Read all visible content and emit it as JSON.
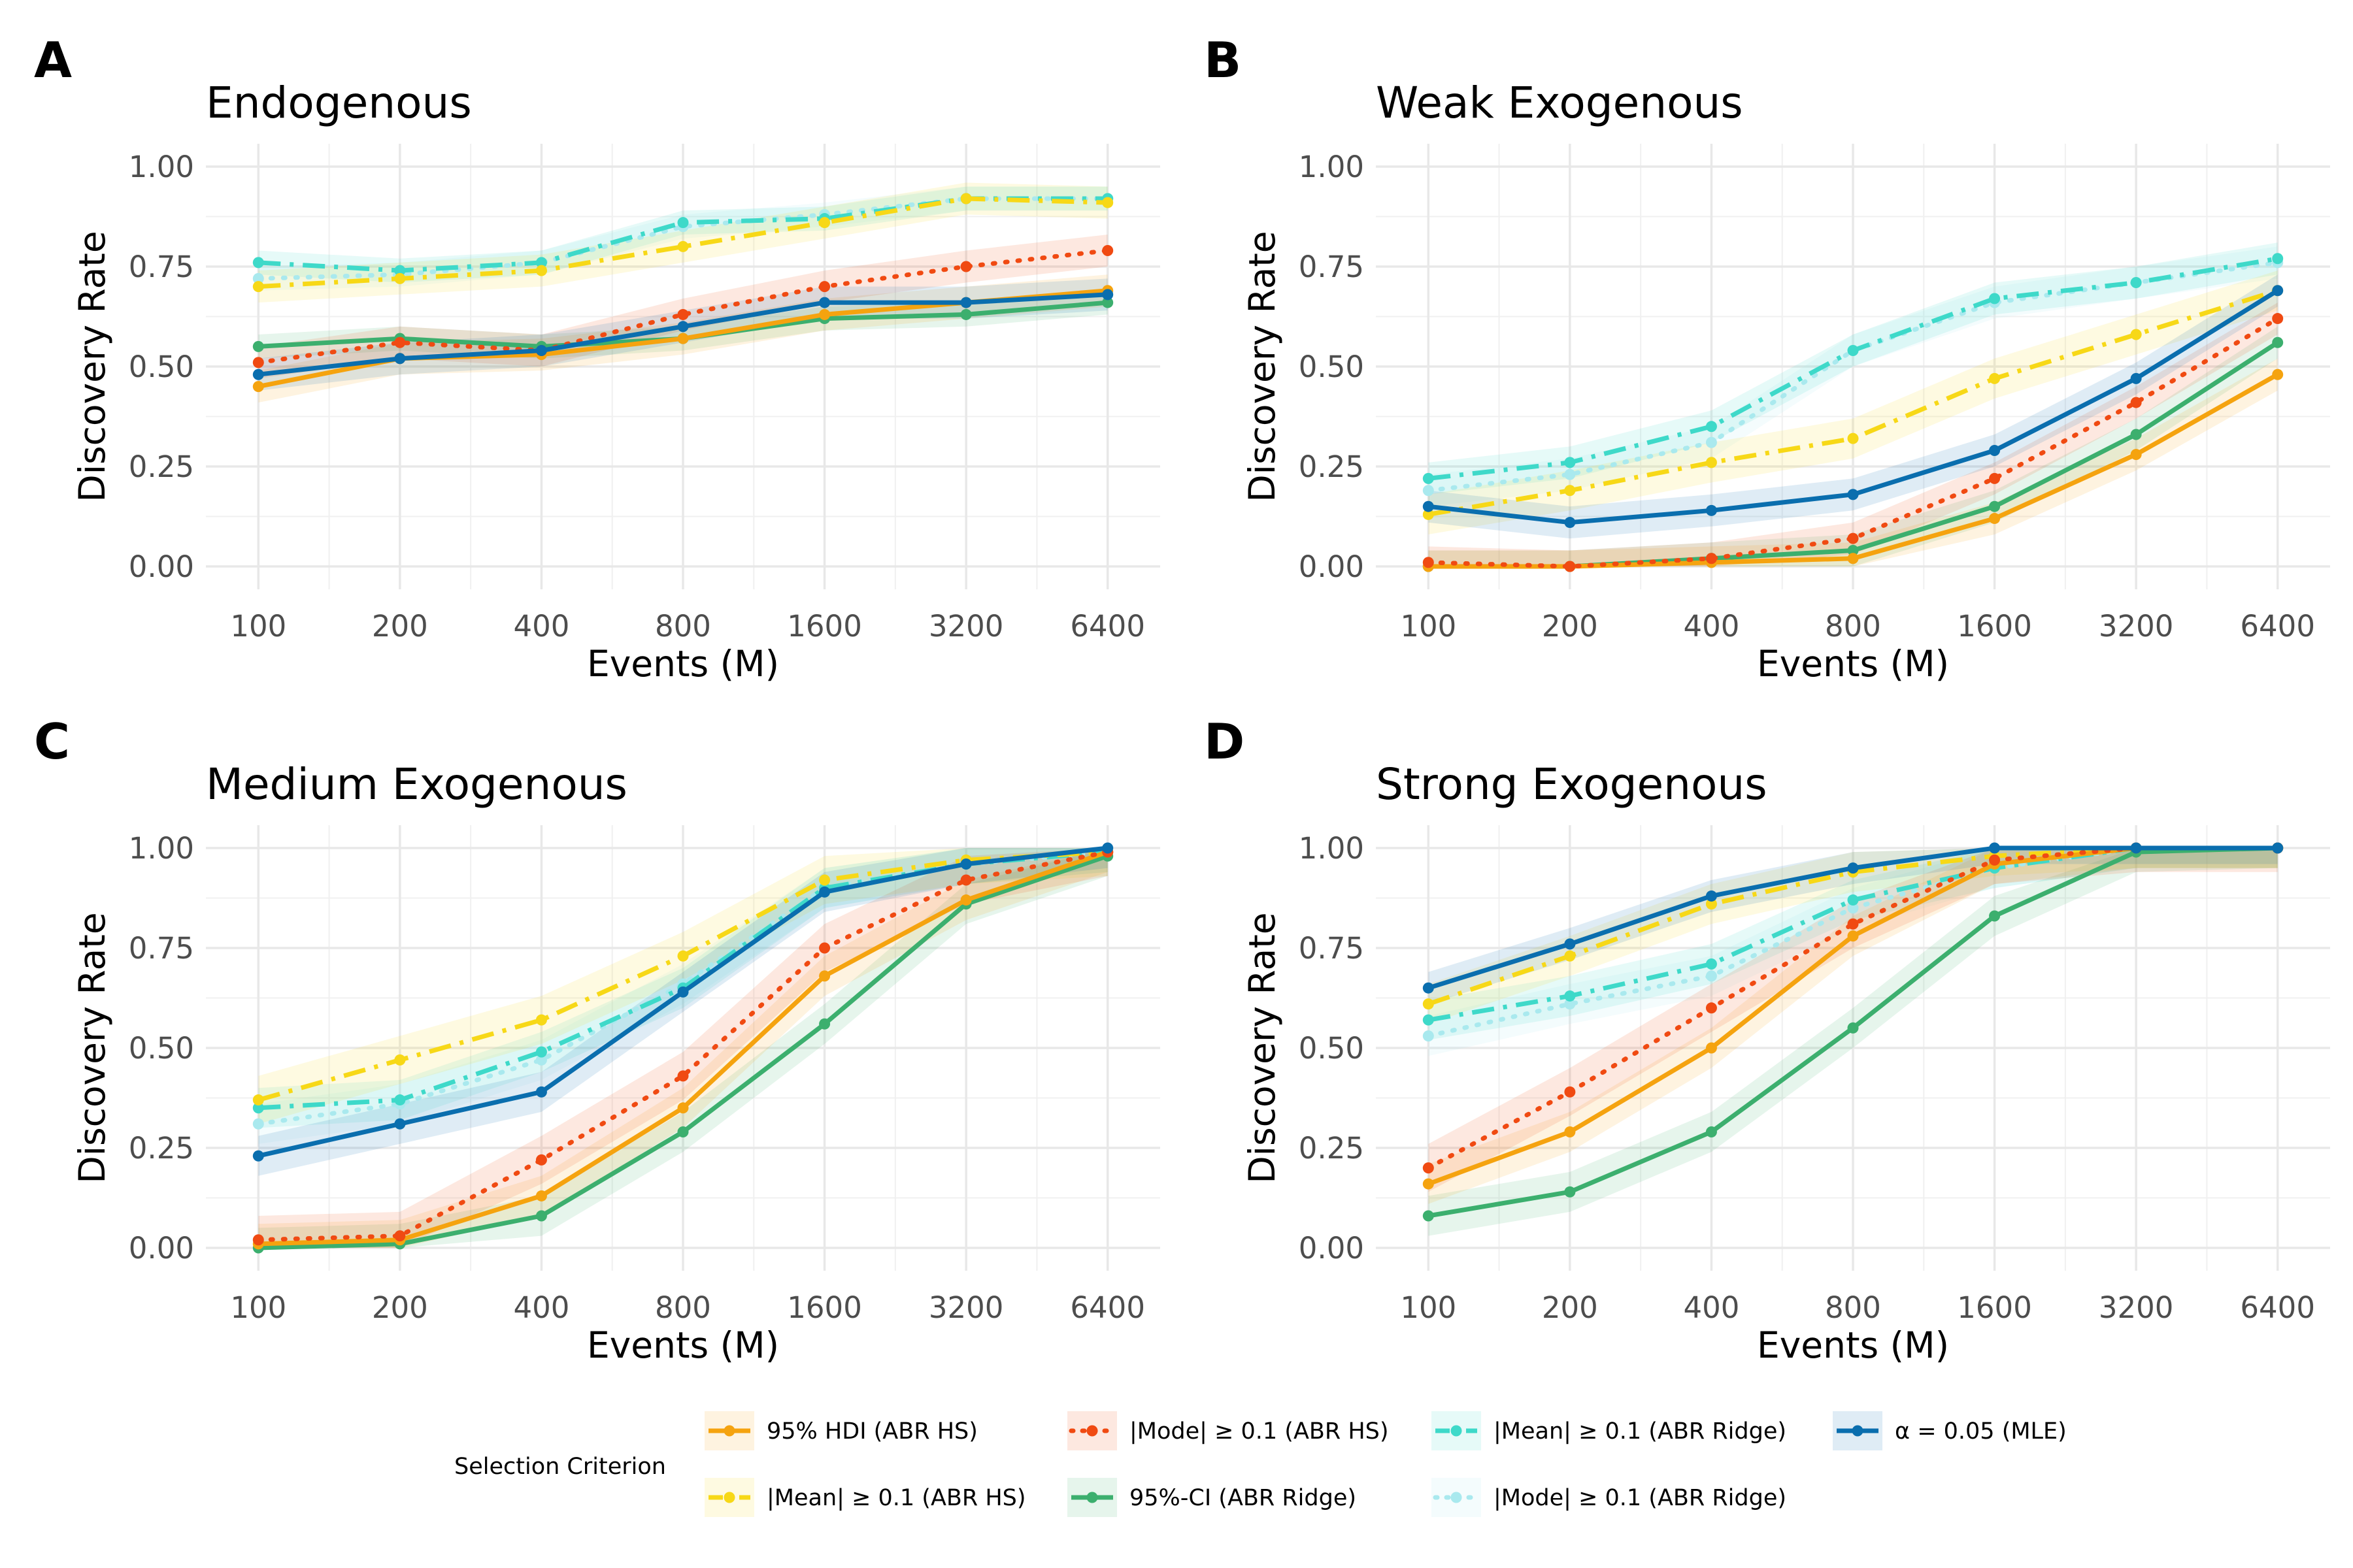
{
  "legend": {
    "title": "Selection Criterion",
    "placement": "bottom"
  },
  "series_styles": [
    {
      "name": "95% HDI (ABR HS)",
      "color": "#F5A30F",
      "dash": "solid"
    },
    {
      "name": "|Mode| ≥ 0.1 (ABR HS)",
      "color": "#F04A12",
      "dash": "dotted"
    },
    {
      "name": "|Mean| ≥ 0.1 (ABR Ridge)",
      "color": "#3ED9C9",
      "dash": "dashdot"
    },
    {
      "name": "α = 0.05 (MLE)",
      "color": "#0A6EAE",
      "dash": "solid"
    },
    {
      "name": "|Mean| ≥ 0.1 (ABR HS)",
      "color": "#F7D817",
      "dash": "dashdot"
    },
    {
      "name": "95%-CI (ABR Ridge)",
      "color": "#3CAF6E",
      "dash": "solid"
    },
    {
      "name": "|Mode| ≥ 0.1 (ABR Ridge)",
      "color": "#A9E9EE",
      "dash": "dotted"
    }
  ],
  "chart_data": [
    {
      "type": "line",
      "letter": "A",
      "title": "Endogenous",
      "xlabel": "Events (M)",
      "ylabel": "Discovery Rate",
      "x_scale": "log2",
      "x": [
        100,
        200,
        400,
        800,
        1600,
        3200,
        6400
      ],
      "x_tick_labels": [
        "100",
        "200",
        "400",
        "800",
        "1600",
        "3200",
        "6400"
      ],
      "ylim": [
        0,
        1
      ],
      "y_ticks": [
        0,
        0.25,
        0.5,
        0.75,
        1
      ],
      "y_tick_labels": [
        "0.00",
        "0.25",
        "0.50",
        "0.75",
        "1.00"
      ],
      "grid": true,
      "series": [
        {
          "name": "95% HDI (ABR HS)",
          "values": [
            0.45,
            0.52,
            0.53,
            0.57,
            0.63,
            0.66,
            0.69
          ],
          "band": 0.04
        },
        {
          "name": "|Mean| ≥ 0.1 (ABR HS)",
          "values": [
            0.7,
            0.72,
            0.74,
            0.8,
            0.86,
            0.92,
            0.91
          ],
          "band": 0.04
        },
        {
          "name": "|Mode| ≥ 0.1 (ABR HS)",
          "values": [
            0.51,
            0.56,
            0.54,
            0.63,
            0.7,
            0.75,
            0.79
          ],
          "band": 0.04
        },
        {
          "name": "95%-CI (ABR Ridge)",
          "values": [
            0.55,
            0.57,
            0.55,
            0.57,
            0.62,
            0.63,
            0.66
          ],
          "band": 0.03
        },
        {
          "name": "|Mean| ≥ 0.1 (ABR Ridge)",
          "values": [
            0.76,
            0.74,
            0.76,
            0.86,
            0.87,
            0.92,
            0.92
          ],
          "band": 0.03
        },
        {
          "name": "|Mode| ≥ 0.1 (ABR Ridge)",
          "values": [
            0.72,
            0.73,
            0.76,
            0.85,
            0.88,
            0.92,
            0.92
          ],
          "band": 0.03
        },
        {
          "name": "α = 0.05 (MLE)",
          "values": [
            0.48,
            0.52,
            0.54,
            0.6,
            0.66,
            0.66,
            0.68
          ],
          "band": 0.04
        }
      ]
    },
    {
      "type": "line",
      "letter": "B",
      "title": "Weak Exogenous",
      "xlabel": "Events (M)",
      "ylabel": "Discovery Rate",
      "x_scale": "log2",
      "x": [
        100,
        200,
        400,
        800,
        1600,
        3200,
        6400
      ],
      "x_tick_labels": [
        "100",
        "200",
        "400",
        "800",
        "1600",
        "3200",
        "6400"
      ],
      "ylim": [
        0,
        1
      ],
      "y_ticks": [
        0,
        0.25,
        0.5,
        0.75,
        1
      ],
      "y_tick_labels": [
        "0.00",
        "0.25",
        "0.50",
        "0.75",
        "1.00"
      ],
      "grid": true,
      "series": [
        {
          "name": "95% HDI (ABR HS)",
          "values": [
            0.0,
            0.0,
            0.01,
            0.02,
            0.12,
            0.28,
            0.48
          ],
          "band": 0.04
        },
        {
          "name": "|Mean| ≥ 0.1 (ABR HS)",
          "values": [
            0.13,
            0.19,
            0.26,
            0.32,
            0.47,
            0.58,
            0.69
          ],
          "band": 0.05
        },
        {
          "name": "|Mode| ≥ 0.1 (ABR HS)",
          "values": [
            0.01,
            0.0,
            0.02,
            0.07,
            0.22,
            0.41,
            0.62
          ],
          "band": 0.04
        },
        {
          "name": "95%-CI (ABR Ridge)",
          "values": [
            0.0,
            0.0,
            0.02,
            0.04,
            0.15,
            0.33,
            0.56
          ],
          "band": 0.04
        },
        {
          "name": "|Mean| ≥ 0.1 (ABR Ridge)",
          "values": [
            0.22,
            0.26,
            0.35,
            0.54,
            0.67,
            0.71,
            0.77
          ],
          "band": 0.04
        },
        {
          "name": "|Mode| ≥ 0.1 (ABR Ridge)",
          "values": [
            0.19,
            0.23,
            0.31,
            0.54,
            0.66,
            0.71,
            0.76
          ],
          "band": 0.04
        },
        {
          "name": "α = 0.05 (MLE)",
          "values": [
            0.15,
            0.11,
            0.14,
            0.18,
            0.29,
            0.47,
            0.69
          ],
          "band": 0.04
        }
      ]
    },
    {
      "type": "line",
      "letter": "C",
      "title": "Medium Exogenous",
      "xlabel": "Events (M)",
      "ylabel": "Discovery Rate",
      "x_scale": "log2",
      "x": [
        100,
        200,
        400,
        800,
        1600,
        3200,
        6400
      ],
      "x_tick_labels": [
        "100",
        "200",
        "400",
        "800",
        "1600",
        "3200",
        "6400"
      ],
      "ylim": [
        0,
        1
      ],
      "y_ticks": [
        0,
        0.25,
        0.5,
        0.75,
        1
      ],
      "y_tick_labels": [
        "0.00",
        "0.25",
        "0.50",
        "0.75",
        "1.00"
      ],
      "grid": true,
      "series": [
        {
          "name": "95% HDI (ABR HS)",
          "values": [
            0.01,
            0.02,
            0.13,
            0.35,
            0.68,
            0.87,
            0.99
          ],
          "band": 0.05
        },
        {
          "name": "|Mean| ≥ 0.1 (ABR HS)",
          "values": [
            0.37,
            0.47,
            0.57,
            0.73,
            0.92,
            0.97,
            0.99
          ],
          "band": 0.06
        },
        {
          "name": "|Mode| ≥ 0.1 (ABR HS)",
          "values": [
            0.02,
            0.03,
            0.22,
            0.43,
            0.75,
            0.92,
            0.99
          ],
          "band": 0.06
        },
        {
          "name": "95%-CI (ABR Ridge)",
          "values": [
            0.0,
            0.01,
            0.08,
            0.29,
            0.56,
            0.86,
            0.98
          ],
          "band": 0.05
        },
        {
          "name": "|Mean| ≥ 0.1 (ABR Ridge)",
          "values": [
            0.35,
            0.37,
            0.49,
            0.65,
            0.9,
            0.96,
            0.99
          ],
          "band": 0.05
        },
        {
          "name": "|Mode| ≥ 0.1 (ABR Ridge)",
          "values": [
            0.31,
            0.36,
            0.47,
            0.66,
            0.9,
            0.96,
            0.99
          ],
          "band": 0.05
        },
        {
          "name": "α = 0.05 (MLE)",
          "values": [
            0.23,
            0.31,
            0.39,
            0.64,
            0.89,
            0.96,
            1.0
          ],
          "band": 0.05
        }
      ]
    },
    {
      "type": "line",
      "letter": "D",
      "title": "Strong Exogenous",
      "xlabel": "Events (M)",
      "ylabel": "Discovery Rate",
      "x_scale": "log2",
      "x": [
        100,
        200,
        400,
        800,
        1600,
        3200,
        6400
      ],
      "x_tick_labels": [
        "100",
        "200",
        "400",
        "800",
        "1600",
        "3200",
        "6400"
      ],
      "ylim": [
        0,
        1
      ],
      "y_ticks": [
        0,
        0.25,
        0.5,
        0.75,
        1
      ],
      "y_tick_labels": [
        "0.00",
        "0.25",
        "0.50",
        "0.75",
        "1.00"
      ],
      "grid": true,
      "series": [
        {
          "name": "95% HDI (ABR HS)",
          "values": [
            0.16,
            0.29,
            0.5,
            0.78,
            0.96,
            1.0,
            1.0
          ],
          "band": 0.05
        },
        {
          "name": "|Mean| ≥ 0.1 (ABR HS)",
          "values": [
            0.61,
            0.73,
            0.86,
            0.94,
            0.98,
            1.0,
            1.0
          ],
          "band": 0.05
        },
        {
          "name": "|Mode| ≥ 0.1 (ABR HS)",
          "values": [
            0.2,
            0.39,
            0.6,
            0.81,
            0.97,
            1.0,
            1.0
          ],
          "band": 0.06
        },
        {
          "name": "95%-CI (ABR Ridge)",
          "values": [
            0.08,
            0.14,
            0.29,
            0.55,
            0.83,
            0.99,
            1.0
          ],
          "band": 0.05
        },
        {
          "name": "|Mean| ≥ 0.1 (ABR Ridge)",
          "values": [
            0.57,
            0.63,
            0.71,
            0.87,
            0.95,
            1.0,
            1.0
          ],
          "band": 0.05
        },
        {
          "name": "|Mode| ≥ 0.1 (ABR Ridge)",
          "values": [
            0.53,
            0.61,
            0.68,
            0.85,
            0.95,
            1.0,
            1.0
          ],
          "band": 0.05
        },
        {
          "name": "α = 0.05 (MLE)",
          "values": [
            0.65,
            0.76,
            0.88,
            0.95,
            1.0,
            1.0,
            1.0
          ],
          "band": 0.04
        }
      ]
    }
  ]
}
